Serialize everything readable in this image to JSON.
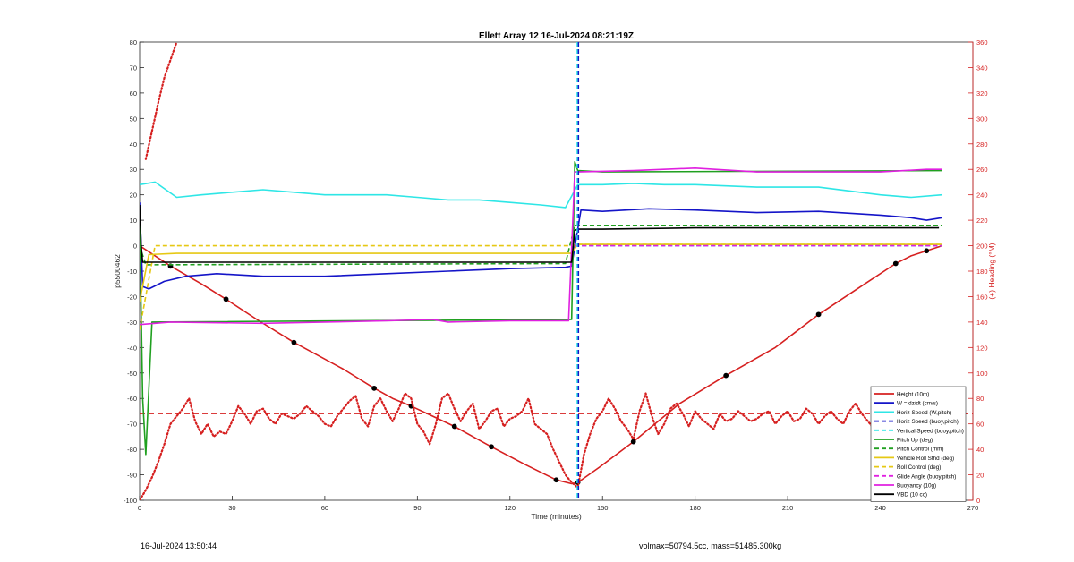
{
  "chart_data": {
    "type": "line",
    "title": "Ellett Array 12 16-Jul-2024 08:21:19Z",
    "xlabel": "Time (minutes)",
    "ylabel": "p5500462",
    "y2label": "(+) Heading (°M)",
    "xlim": [
      0,
      270
    ],
    "ylim": [
      -100,
      80
    ],
    "y2lim": [
      0,
      360
    ],
    "xticks": [
      "0",
      "30",
      "60",
      "90",
      "120",
      "150",
      "180",
      "210",
      "240",
      "270"
    ],
    "yticks": [
      "80",
      "70",
      "60",
      "50",
      "40",
      "30",
      "20",
      "10",
      "0",
      "-10",
      "-20",
      "-30",
      "-40",
      "-50",
      "-60",
      "-70",
      "-80",
      "-90",
      "-100"
    ],
    "y2ticks": [
      "360",
      "340",
      "320",
      "300",
      "280",
      "260",
      "240",
      "220",
      "200",
      "180",
      "160",
      "140",
      "120",
      "100",
      "80",
      "60",
      "40",
      "20",
      "0"
    ],
    "grid": false,
    "legend_position": "bottom-right",
    "colors": {
      "red": "#d62020",
      "blue": "#1414c8",
      "cyan": "#2ee6e6",
      "green": "#20a020",
      "yellow": "#e6c814",
      "magenta": "#e020e0",
      "black": "#000000"
    },
    "vlines": [
      {
        "x": 141.8,
        "color": "#2ee6e6",
        "style": "dashed"
      },
      {
        "x": 142.2,
        "color": "#1414c8",
        "style": "dashed"
      }
    ],
    "heading_target_deg": 68,
    "series": [
      {
        "name": "Height (10m)",
        "color": "#d62020",
        "style": "solid",
        "axis": "left",
        "x": [
          0,
          10,
          20,
          28,
          38,
          50,
          66,
          76,
          82,
          88,
          95,
          102,
          108,
          114,
          125,
          135,
          140,
          142,
          149,
          160,
          175,
          190,
          206,
          220,
          235,
          245,
          250,
          255,
          260
        ],
        "y": [
          0,
          -8,
          -15,
          -21,
          -29,
          -38,
          -48.5,
          -56,
          -60,
          -63,
          -67,
          -71,
          -75,
          -79,
          -86,
          -92,
          -93.5,
          -93,
          -87,
          -77,
          -62,
          -51,
          -40,
          -27,
          -15,
          -7,
          -4,
          -2,
          0
        ]
      },
      {
        "name": "W = dz/dt (cm/s)",
        "color": "#1414c8",
        "style": "solid",
        "axis": "left",
        "x": [
          0,
          1,
          3,
          8,
          15,
          25,
          40,
          60,
          80,
          100,
          120,
          138,
          140,
          143,
          150,
          165,
          180,
          200,
          220,
          240,
          250,
          255,
          260
        ],
        "y": [
          17,
          -16,
          -17,
          -14,
          -12,
          -11,
          -12,
          -12,
          -11,
          -10,
          -9,
          -8.5,
          -8,
          14,
          13.5,
          14.5,
          14,
          13,
          13.5,
          12,
          11,
          10,
          11
        ]
      },
      {
        "name": "Horiz Speed (W,pitch)",
        "color": "#2ee6e6",
        "style": "solid",
        "axis": "left",
        "x": [
          0,
          5,
          12,
          20,
          30,
          40,
          50,
          60,
          70,
          80,
          90,
          100,
          110,
          120,
          130,
          138,
          142,
          150,
          160,
          170,
          180,
          190,
          200,
          220,
          240,
          250,
          260
        ],
        "y": [
          24,
          25,
          19,
          20,
          21,
          22,
          21,
          20,
          20,
          20,
          19,
          18,
          18,
          17,
          16,
          15,
          24,
          24,
          24.5,
          24,
          24,
          23.5,
          23,
          23,
          20,
          19,
          20
        ]
      },
      {
        "name": "Horiz Speed (buoy,pitch)",
        "color": "#1414c8",
        "style": "dashed",
        "axis": "left",
        "x": [
          141,
          260
        ],
        "y": [
          0,
          0
        ]
      },
      {
        "name": "Vertical Speed (buoy,pitch)",
        "color": "#2ee6e6",
        "style": "dashed",
        "axis": "left",
        "x": [
          141,
          260
        ],
        "y": [
          0,
          0
        ]
      },
      {
        "name": "Pitch Up (deg)",
        "color": "#20a020",
        "style": "solid",
        "axis": "left",
        "x": [
          0,
          1,
          2,
          4,
          140,
          141,
          142,
          150,
          260
        ],
        "y": [
          10,
          -60,
          -82,
          -30,
          -29,
          33,
          29.5,
          29,
          29.5
        ]
      },
      {
        "name": "Pitch Control (mm)",
        "color": "#20a020",
        "style": "dashed",
        "axis": "left",
        "x": [
          0,
          2,
          138,
          141,
          260
        ],
        "y": [
          0,
          -7.5,
          -7,
          8,
          8
        ]
      },
      {
        "name": "Vehicle Roll Sthd (deg)",
        "color": "#e6c814",
        "style": "solid",
        "axis": "left",
        "x": [
          0,
          3,
          12,
          130,
          140,
          142,
          260
        ],
        "y": [
          -22,
          -3.5,
          -3,
          -3,
          -3,
          0.5,
          0.5
        ]
      },
      {
        "name": "Roll Control (deg)",
        "color": "#e6c814",
        "style": "dashed",
        "axis": "left",
        "x": [
          0,
          5,
          15,
          140,
          142,
          260
        ],
        "y": [
          -33,
          0,
          0,
          0,
          0.5,
          0.5
        ]
      },
      {
        "name": "Glide Angle (buoy,pitch)",
        "color": "#e020e0",
        "style": "dashed",
        "axis": "left",
        "x": [
          141,
          260
        ],
        "y": [
          0,
          0
        ]
      },
      {
        "name": "Buoyancy (10g)",
        "color": "#e020e0",
        "style": "solid",
        "axis": "left",
        "x": [
          0,
          10,
          40,
          60,
          80,
          95,
          100,
          120,
          139,
          141,
          142,
          160,
          180,
          200,
          240,
          255,
          260
        ],
        "y": [
          -31,
          -30,
          -30.5,
          -30,
          -29.5,
          -29,
          -30,
          -29.5,
          -29.5,
          29,
          29,
          29.5,
          30.5,
          29,
          29,
          30,
          30
        ]
      },
      {
        "name": "VBD (10 cc)",
        "color": "#000000",
        "style": "solid",
        "axis": "left",
        "x": [
          0,
          0.5,
          1,
          140,
          141,
          142,
          150,
          180,
          240,
          259
        ],
        "y": [
          16,
          0,
          -6.5,
          -6.5,
          6,
          6.5,
          6.5,
          7,
          7,
          7
        ]
      },
      {
        "name": "Heading",
        "color": "#d62020",
        "style": "dotted",
        "axis": "right",
        "x": [
          0,
          2,
          4,
          6,
          8,
          10,
          12,
          14,
          16,
          18,
          20,
          22,
          24,
          26,
          28,
          30,
          32,
          34,
          36,
          38,
          40,
          42,
          44,
          46,
          48,
          50,
          52,
          54,
          56,
          58,
          60,
          62,
          64,
          66,
          68,
          70,
          72,
          74,
          76,
          78,
          80,
          82,
          84,
          86,
          88,
          90,
          92,
          94,
          96,
          98,
          100,
          102,
          104,
          106,
          108,
          110,
          112,
          114,
          116,
          118,
          120,
          122,
          124,
          126,
          128,
          130,
          132,
          134,
          136,
          138,
          140,
          142,
          144,
          146,
          148,
          150,
          152,
          154,
          156,
          158,
          160,
          162,
          164,
          166,
          168,
          170,
          172,
          174,
          176,
          178,
          180,
          182,
          184,
          186,
          188,
          190,
          192,
          194,
          196,
          198,
          200,
          202,
          204,
          206,
          208,
          210,
          212,
          214,
          216,
          218,
          220,
          222,
          224,
          226,
          228,
          230,
          232,
          234,
          236,
          238,
          240,
          242,
          244,
          246,
          248,
          250,
          252,
          254,
          256,
          258
        ],
        "y": [
          0,
          8,
          18,
          30,
          44,
          60,
          66,
          72,
          80,
          62,
          52,
          60,
          50,
          54,
          52,
          62,
          74,
          68,
          60,
          70,
          72,
          64,
          60,
          68,
          66,
          64,
          68,
          74,
          70,
          66,
          60,
          58,
          66,
          72,
          78,
          82,
          64,
          58,
          74,
          80,
          70,
          62,
          72,
          84,
          80,
          60,
          54,
          44,
          60,
          80,
          84,
          72,
          62,
          70,
          76,
          56,
          62,
          70,
          72,
          58,
          64,
          66,
          70,
          80,
          60,
          56,
          52,
          40,
          30,
          20,
          14,
          10,
          36,
          52,
          64,
          70,
          80,
          72,
          62,
          56,
          48,
          70,
          84,
          66,
          52,
          60,
          72,
          76,
          68,
          58,
          70,
          64,
          60,
          56,
          68,
          62,
          64,
          70,
          66,
          62,
          64,
          68,
          70,
          60,
          66,
          70,
          62,
          64,
          72,
          68,
          60,
          66,
          70,
          64,
          60,
          70,
          76,
          68,
          62,
          56,
          64,
          72,
          68,
          60,
          50,
          64,
          74,
          68,
          66,
          70
        ]
      },
      {
        "name": "Heading (early, off-scale)",
        "color": "#d62020",
        "style": "dotted",
        "axis": "left",
        "x": [
          2,
          4,
          6,
          8,
          10,
          12
        ],
        "y": [
          34,
          45,
          56,
          66,
          73,
          80
        ]
      }
    ],
    "legend": [
      {
        "label": "Height (10m)",
        "color": "#d62020",
        "style": "solid"
      },
      {
        "label": "W = dz/dt (cm/s)",
        "color": "#1414c8",
        "style": "solid"
      },
      {
        "label": "Horiz Speed (W,pitch)",
        "color": "#2ee6e6",
        "style": "solid"
      },
      {
        "label": "Horiz Speed (buoy,pitch)",
        "color": "#1414c8",
        "style": "dashed"
      },
      {
        "label": "Vertical Speed (buoy,pitch)",
        "color": "#2ee6e6",
        "style": "dashed"
      },
      {
        "label": "Pitch Up (deg)",
        "color": "#20a020",
        "style": "solid"
      },
      {
        "label": "Pitch Control (mm)",
        "color": "#20a020",
        "style": "dashed"
      },
      {
        "label": "Vehicle Roll Sthd (deg)",
        "color": "#e6c814",
        "style": "solid"
      },
      {
        "label": "Roll Control (deg)",
        "color": "#e6c814",
        "style": "dashed"
      },
      {
        "label": "Glide Angle (buoy,pitch)",
        "color": "#e020e0",
        "style": "dashed"
      },
      {
        "label": "Buoyancy (10g)",
        "color": "#e020e0",
        "style": "solid"
      },
      {
        "label": "VBD (10 cc)",
        "color": "#000000",
        "style": "solid"
      }
    ]
  },
  "footer": {
    "left": "16-Jul-2024 13:50:44",
    "right": "volmax=50794.5cc, mass=51485.300kg"
  }
}
